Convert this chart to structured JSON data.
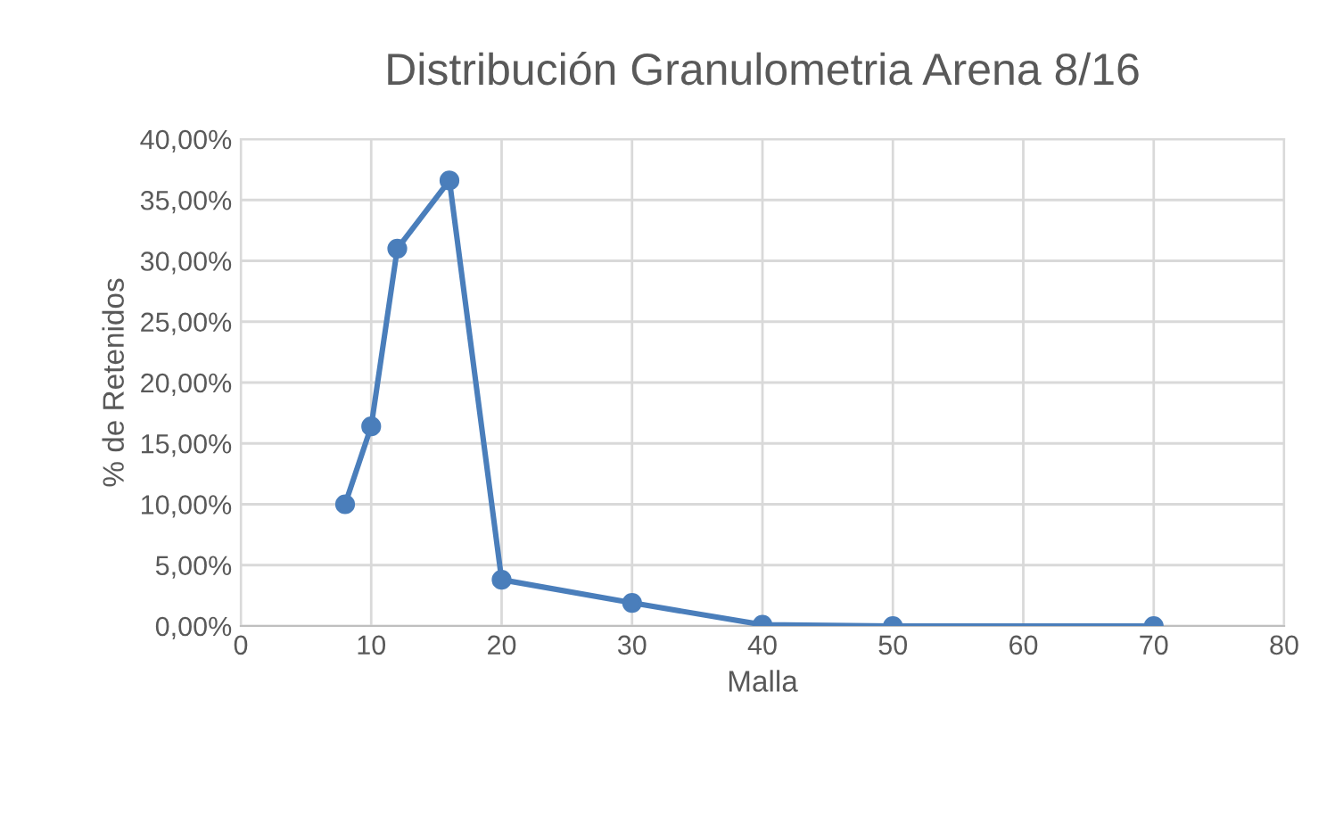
{
  "chart_data": {
    "type": "line",
    "title": "Distribución Granulometria Arena 8/16",
    "xlabel": "Malla",
    "ylabel": "% de Retenidos",
    "x": [
      8,
      10,
      12,
      16,
      20,
      30,
      40,
      50,
      70
    ],
    "series": [
      {
        "color": "#4a7ebb",
        "values": [
          10.0,
          16.4,
          31.0,
          36.6,
          3.8,
          1.9,
          0.1,
          0.0,
          0.0
        ]
      }
    ],
    "xlim": [
      0,
      80
    ],
    "xticks": [
      0,
      10,
      20,
      30,
      40,
      50,
      60,
      70,
      80
    ],
    "ylim": [
      0,
      40
    ],
    "yticks": [
      {
        "value": 0,
        "label": "0,00%"
      },
      {
        "value": 5,
        "label": "5,00%"
      },
      {
        "value": 10,
        "label": "10,00%"
      },
      {
        "value": 15,
        "label": "15,00%"
      },
      {
        "value": 20,
        "label": "20,00%"
      },
      {
        "value": 25,
        "label": "25,00%"
      },
      {
        "value": 30,
        "label": "30,00%"
      },
      {
        "value": 35,
        "label": "35,00%"
      },
      {
        "value": 40,
        "label": "40,00%"
      }
    ],
    "grid": true,
    "marker": "circle",
    "line_style": "solid"
  }
}
